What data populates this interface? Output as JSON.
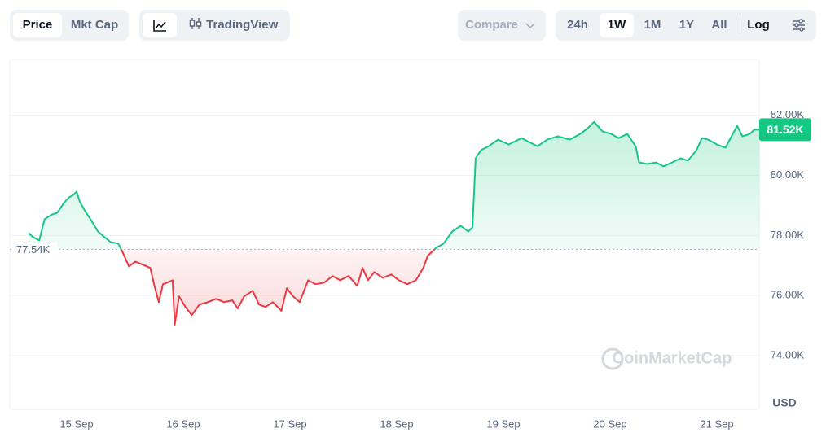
{
  "toolbar": {
    "price": "Price",
    "mkt_cap": "Mkt Cap",
    "tradingview": "TradingView",
    "compare": "Compare",
    "ranges": [
      "24h",
      "1W",
      "1M",
      "1Y",
      "All"
    ],
    "log": "Log"
  },
  "chart_data": {
    "type": "line",
    "x": [
      14.55,
      14.59,
      14.65,
      14.7,
      14.76,
      14.82,
      14.88,
      14.93,
      14.97,
      15.0,
      15.03,
      15.08,
      15.14,
      15.2,
      15.26,
      15.32,
      15.39,
      15.43,
      15.49,
      15.55,
      15.62,
      15.69,
      15.73,
      15.77,
      15.81,
      15.85,
      15.9,
      15.92,
      15.96,
      16.02,
      16.08,
      16.15,
      16.23,
      16.31,
      16.38,
      16.46,
      16.51,
      16.57,
      16.65,
      16.71,
      16.77,
      16.84,
      16.92,
      16.97,
      17.03,
      17.09,
      17.17,
      17.24,
      17.32,
      17.4,
      17.47,
      17.55,
      17.63,
      17.68,
      17.73,
      17.79,
      17.87,
      17.95,
      18.02,
      18.1,
      18.18,
      18.25,
      18.29,
      18.37,
      18.44,
      18.52,
      18.6,
      18.67,
      18.71,
      18.74,
      18.79,
      18.86,
      18.95,
      19.05,
      19.17,
      19.24,
      19.32,
      19.41,
      19.51,
      19.62,
      19.72,
      19.79,
      19.85,
      19.93,
      20.01,
      20.08,
      20.16,
      20.24,
      20.27,
      20.35,
      20.43,
      20.5,
      20.58,
      20.66,
      20.73,
      20.81,
      20.86,
      20.92,
      21.0,
      21.08,
      21.15,
      21.19,
      21.24,
      21.31,
      21.35,
      21.4
    ],
    "values": [
      78080,
      77950,
      77840,
      78540,
      78680,
      78760,
      79080,
      79270,
      79350,
      79460,
      79130,
      78810,
      78490,
      78130,
      77950,
      77780,
      77730,
      77460,
      76970,
      77130,
      77030,
      76920,
      76320,
      75780,
      76380,
      76430,
      76510,
      75030,
      75970,
      75620,
      75350,
      75700,
      75780,
      75890,
      75780,
      75840,
      75570,
      75970,
      76160,
      75700,
      75620,
      75780,
      75490,
      76240,
      75970,
      75780,
      76510,
      76380,
      76430,
      76650,
      76510,
      76650,
      76320,
      76920,
      76510,
      76780,
      76590,
      76700,
      76510,
      76380,
      76510,
      76920,
      77320,
      77590,
      77730,
      78130,
      78320,
      78130,
      78270,
      80570,
      80840,
      80970,
      81190,
      81030,
      81240,
      81110,
      80970,
      81190,
      81300,
      81190,
      81380,
      81570,
      81780,
      81460,
      81380,
      81240,
      81380,
      80970,
      80430,
      80380,
      80430,
      80300,
      80430,
      80570,
      80490,
      80840,
      81240,
      81190,
      81030,
      80920,
      81380,
      81650,
      81300,
      81380,
      81520,
      81520
    ],
    "up_color": "#16c784",
    "down_color": "#ea3943",
    "xlim": [
      14.374,
      21.397
    ],
    "xticks": [
      {
        "value": 15,
        "label": "15 Sep"
      },
      {
        "value": 16,
        "label": "16 Sep"
      },
      {
        "value": 17,
        "label": "17 Sep"
      },
      {
        "value": 18,
        "label": "18 Sep"
      },
      {
        "value": 19,
        "label": "19 Sep"
      },
      {
        "value": 20,
        "label": "20 Sep"
      },
      {
        "value": 21,
        "label": "21 Sep"
      }
    ],
    "ylim": [
      72240,
      83860
    ],
    "yticks": [
      {
        "value": 74000,
        "label": "74.00K"
      },
      {
        "value": 76000,
        "label": "76.00K"
      },
      {
        "value": 78000,
        "label": "78.00K"
      },
      {
        "value": 80000,
        "label": "80.00K"
      },
      {
        "value": 82000,
        "label": "82.00K"
      }
    ],
    "grid": true,
    "baseline": {
      "value": 77540,
      "label": "77.54K"
    },
    "last_price": {
      "value": 81520,
      "label": "81.52K"
    },
    "unit": "USD",
    "watermark": "CoinMarketCap"
  }
}
